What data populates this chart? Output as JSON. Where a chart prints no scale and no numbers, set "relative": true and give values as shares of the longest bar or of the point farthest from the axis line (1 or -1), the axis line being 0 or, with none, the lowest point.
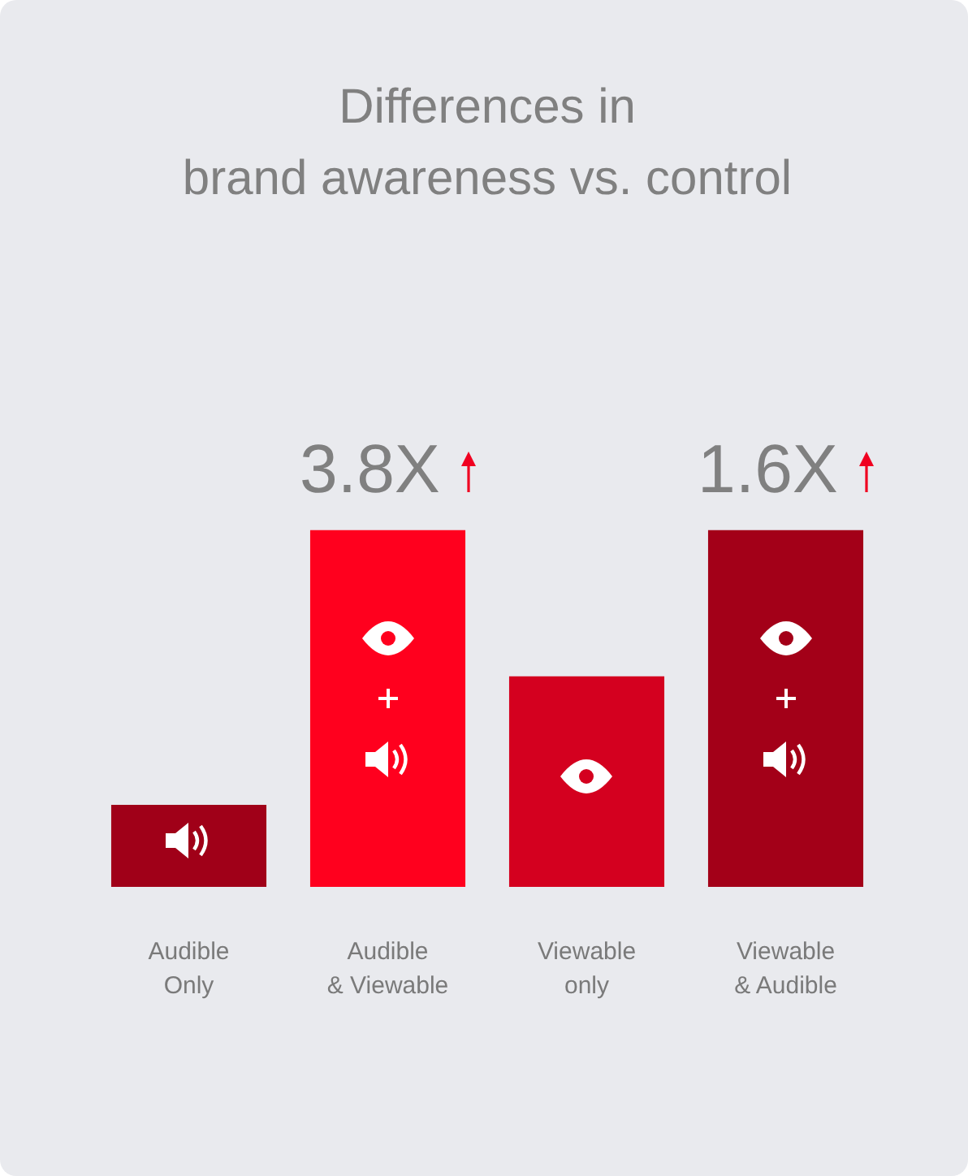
{
  "chart_data": {
    "type": "bar",
    "title": "Differences in\nbrand awareness vs. control",
    "categories": [
      "Audible Only",
      "Audible & Viewable",
      "Viewable only",
      "Viewable & Audible"
    ],
    "values": [
      0.23,
      1,
      0.59,
      1
    ],
    "colors": [
      "#a00018",
      "#ff001e",
      "#d4001f",
      "#a30018"
    ],
    "relative": true,
    "annotations": [
      {
        "text": "3.8X",
        "x": "Audible & Viewable",
        "y": 1
      },
      {
        "text": "1.6X",
        "x": "Viewable & Audible",
        "y": 1
      }
    ]
  }
}
